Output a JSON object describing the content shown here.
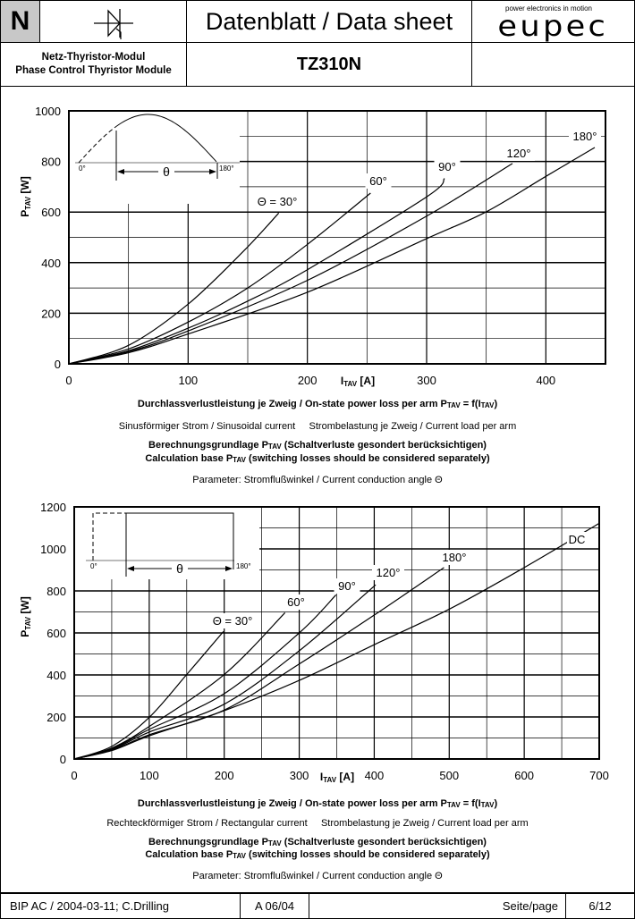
{
  "header": {
    "series_letter": "N",
    "symbol_icon": "thyristor-symbol-icon",
    "title": "Datenblatt / Data sheet",
    "logo_tagline": "power electronics in motion",
    "logo_text": "eupec",
    "product_type_de": "Netz-Thyristor-Modul",
    "product_type_en": "Phase Control Thyristor Module",
    "part_number": "TZ310N"
  },
  "chart_data": [
    {
      "type": "line",
      "title": "Durchlassverlustleistung je Zweig / On-state power loss per arm P_TAV = f(I_TAV)",
      "xlabel": "I",
      "xlabel_sub": "TAV",
      "xlabel_unit": " [A]",
      "ylabel": "P",
      "ylabel_sub": "TAV",
      "ylabel_unit": " [W]",
      "xlim": [
        0,
        450
      ],
      "ylim": [
        0,
        1000
      ],
      "xticks": [
        "0",
        "100",
        "200",
        "300",
        "400"
      ],
      "yticks": [
        "0",
        "200",
        "400",
        "600",
        "800",
        "1000"
      ],
      "grid": true,
      "inset": {
        "start": "0°",
        "end": "180°",
        "angle": "θ",
        "shape": "sinusoidal"
      },
      "series": [
        {
          "name": "Θ = 30°",
          "points": [
            [
              0,
              0
            ],
            [
              50,
              73
            ],
            [
              100,
              236
            ],
            [
              147,
              448
            ],
            [
              176,
              596
            ]
          ]
        },
        {
          "name": "60°",
          "points": [
            [
              0,
              0
            ],
            [
              50,
              59
            ],
            [
              100,
              165
            ],
            [
              150,
              300
            ],
            [
              200,
              472
            ],
            [
              253,
              675
            ]
          ]
        },
        {
          "name": "90°",
          "points": [
            [
              0,
              0
            ],
            [
              50,
              52
            ],
            [
              100,
              141
            ],
            [
              150,
              248
            ],
            [
              200,
              372
            ],
            [
              300,
              660
            ],
            [
              315,
              733
            ]
          ]
        },
        {
          "name": "120°",
          "points": [
            [
              0,
              0
            ],
            [
              50,
              48
            ],
            [
              100,
              130
            ],
            [
              200,
              330
            ],
            [
              300,
              584
            ],
            [
              372,
              792
            ]
          ]
        },
        {
          "name": "180°",
          "points": [
            [
              0,
              0
            ],
            [
              50,
              44
            ],
            [
              100,
              118
            ],
            [
              200,
              283
            ],
            [
              300,
              495
            ],
            [
              350,
              601
            ],
            [
              400,
              741
            ],
            [
              441,
              855
            ]
          ]
        }
      ],
      "captions": {
        "line1": "Durchlassverlustleistung je Zweig / On-state power loss per arm P",
        "line1_sub": "TAV",
        "line1_mid": " = f(I",
        "line1_sub2": "TAV",
        "line1_end": ")",
        "line2": "Sinusförmiger Strom / Sinusoidal current     Strombelastung je Zweig / Current load per arm",
        "line3": "Berechnungsgrundlage P",
        "line3_sub": "TAV",
        "line3_end": " (Schaltverluste gesondert berücksichtigen)",
        "line4": "Calculation base P",
        "line4_sub": "TAV",
        "line4_end": " (switching losses should be considered separately)",
        "line5": "Parameter: Stromflußwinkel / Current conduction angle Θ"
      }
    },
    {
      "type": "line",
      "title": "Durchlassverlustleistung je Zweig / On-state power loss per arm P_TAV = f(I_TAV)",
      "xlabel": "I",
      "xlabel_sub": "TAV",
      "xlabel_unit": " [A]",
      "ylabel": "P",
      "ylabel_sub": "TAV",
      "ylabel_unit": " [W]",
      "xlim": [
        0,
        700
      ],
      "ylim": [
        0,
        1200
      ],
      "xticks": [
        "0",
        "100",
        "200",
        "300",
        "400",
        "500",
        "600",
        "700"
      ],
      "yticks": [
        "0",
        "200",
        "400",
        "600",
        "800",
        "1000",
        "1200"
      ],
      "grid": true,
      "inset": {
        "start": "0°",
        "end": "180°",
        "angle": "θ",
        "shape": "rectangular"
      },
      "series": [
        {
          "name": "Θ = 30°",
          "points": [
            [
              0,
              0
            ],
            [
              50,
              60
            ],
            [
              100,
              198
            ],
            [
              150,
              402
            ],
            [
              199,
              607
            ]
          ]
        },
        {
          "name": "60°",
          "points": [
            [
              0,
              0
            ],
            [
              50,
              52
            ],
            [
              100,
              155
            ],
            [
              200,
              402
            ],
            [
              281,
              696
            ]
          ]
        },
        {
          "name": "90°",
          "points": [
            [
              0,
              0
            ],
            [
              50,
              48
            ],
            [
              100,
              141
            ],
            [
              200,
              311
            ],
            [
              300,
              600
            ],
            [
              349,
              781
            ]
          ]
        },
        {
          "name": "120°",
          "points": [
            [
              0,
              0
            ],
            [
              50,
              45
            ],
            [
              100,
              128
            ],
            [
              200,
              261
            ],
            [
              300,
              515
            ],
            [
              402,
              829
            ]
          ]
        },
        {
          "name": "180°",
          "points": [
            [
              0,
              0
            ],
            [
              50,
              42
            ],
            [
              100,
              115
            ],
            [
              200,
              233
            ],
            [
              300,
              452
            ],
            [
              400,
              685
            ],
            [
              493,
              911
            ]
          ]
        },
        {
          "name": "DC",
          "points": [
            [
              0,
              0
            ],
            [
              50,
              40
            ],
            [
              100,
              110
            ],
            [
              200,
              230
            ],
            [
              300,
              374
            ],
            [
              400,
              544
            ],
            [
              500,
              713
            ],
            [
              600,
              911
            ],
            [
              700,
              1122
            ]
          ]
        }
      ],
      "captions": {
        "line1": "Durchlassverlustleistung je Zweig / On-state power loss per arm P",
        "line1_sub": "TAV",
        "line1_mid": " = f(I",
        "line1_sub2": "TAV",
        "line1_end": ")",
        "line2": "Rechteckförmiger Strom / Rectangular current     Strombelastung je Zweig / Current load per arm",
        "line3": "Berechnungsgrundlage P",
        "line3_sub": "TAV",
        "line3_end": " (Schaltverluste gesondert berücksichtigen)",
        "line4": "Calculation base P",
        "line4_sub": "TAV",
        "line4_end": " (switching losses should be considered separately)",
        "line5": "Parameter: Stromflußwinkel / Current conduction angle Θ"
      }
    }
  ],
  "footer": {
    "author": "BIP AC /  2004-03-11; C.Drilling",
    "revision": "A 06/04",
    "page_label": "Seite/page",
    "page": "6/12"
  }
}
